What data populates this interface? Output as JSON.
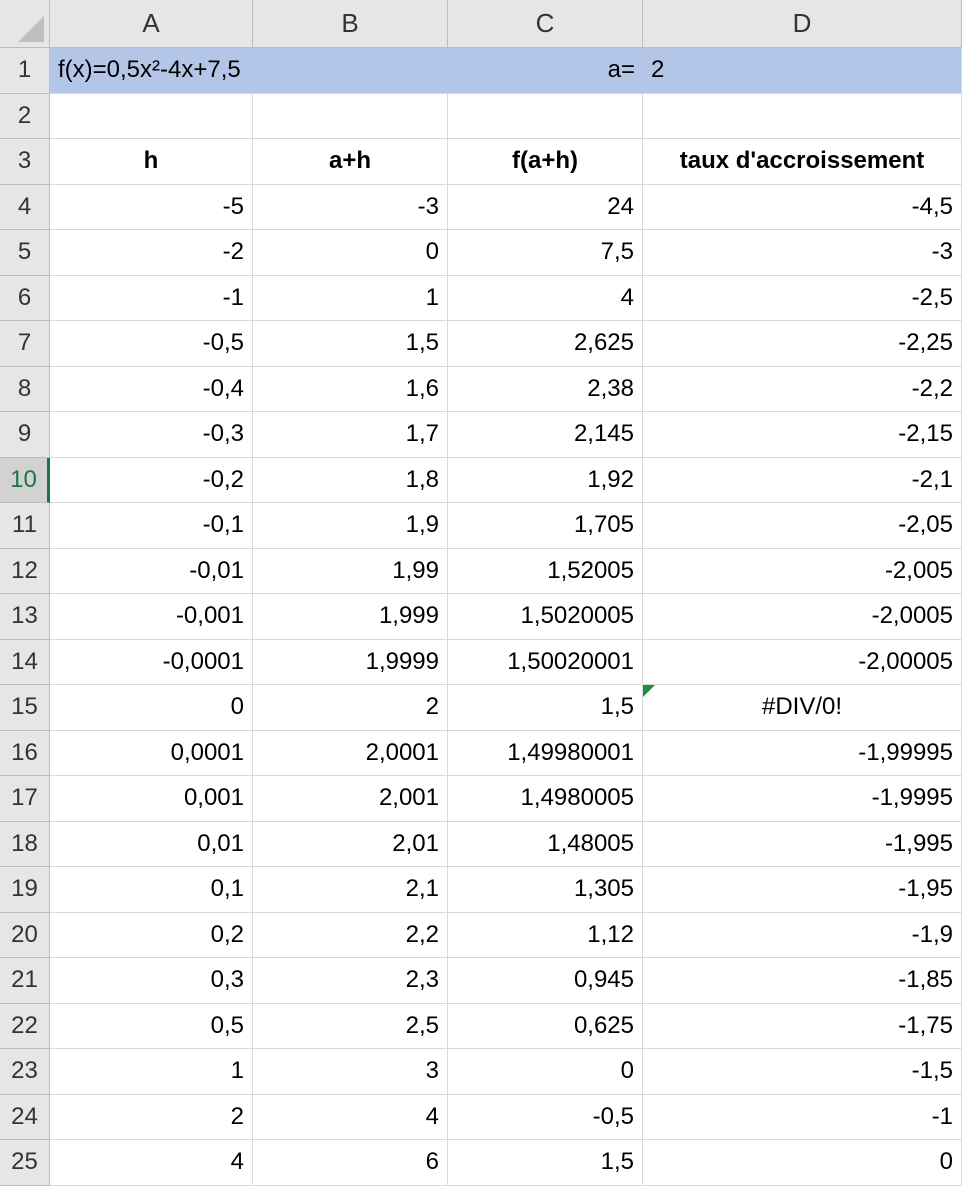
{
  "columns": [
    "A",
    "B",
    "C",
    "D"
  ],
  "row_numbers": [
    "1",
    "2",
    "3",
    "4",
    "5",
    "6",
    "7",
    "8",
    "9",
    "10",
    "11",
    "12",
    "13",
    "14",
    "15",
    "16",
    "17",
    "18",
    "19",
    "20",
    "21",
    "22",
    "23",
    "24",
    "25"
  ],
  "active_row": "10",
  "row1": {
    "formula": "f(x)=0,5x²-4x+7,5",
    "a_label": "a=",
    "a_value": "2"
  },
  "headers": {
    "h": "h",
    "ah": "a+h",
    "fah": "f(a+h)",
    "taux": "taux d'accroissement"
  },
  "rows": [
    {
      "h": "-5",
      "ah": "-3",
      "fah": "24",
      "taux": "-4,5"
    },
    {
      "h": "-2",
      "ah": "0",
      "fah": "7,5",
      "taux": "-3"
    },
    {
      "h": "-1",
      "ah": "1",
      "fah": "4",
      "taux": "-2,5"
    },
    {
      "h": "-0,5",
      "ah": "1,5",
      "fah": "2,625",
      "taux": "-2,25"
    },
    {
      "h": "-0,4",
      "ah": "1,6",
      "fah": "2,38",
      "taux": "-2,2"
    },
    {
      "h": "-0,3",
      "ah": "1,7",
      "fah": "2,145",
      "taux": "-2,15"
    },
    {
      "h": "-0,2",
      "ah": "1,8",
      "fah": "1,92",
      "taux": "-2,1"
    },
    {
      "h": "-0,1",
      "ah": "1,9",
      "fah": "1,705",
      "taux": "-2,05"
    },
    {
      "h": "-0,01",
      "ah": "1,99",
      "fah": "1,52005",
      "taux": "-2,005"
    },
    {
      "h": "-0,001",
      "ah": "1,999",
      "fah": "1,5020005",
      "taux": "-2,0005"
    },
    {
      "h": "-0,0001",
      "ah": "1,9999",
      "fah": "1,50020001",
      "taux": "-2,00005"
    },
    {
      "h": "0",
      "ah": "2",
      "fah": "1,5",
      "taux": "#DIV/0!",
      "error": true
    },
    {
      "h": "0,0001",
      "ah": "2,0001",
      "fah": "1,49980001",
      "taux": "-1,99995"
    },
    {
      "h": "0,001",
      "ah": "2,001",
      "fah": "1,4980005",
      "taux": "-1,9995"
    },
    {
      "h": "0,01",
      "ah": "2,01",
      "fah": "1,48005",
      "taux": "-1,995"
    },
    {
      "h": "0,1",
      "ah": "2,1",
      "fah": "1,305",
      "taux": "-1,95"
    },
    {
      "h": "0,2",
      "ah": "2,2",
      "fah": "1,12",
      "taux": "-1,9"
    },
    {
      "h": "0,3",
      "ah": "2,3",
      "fah": "0,945",
      "taux": "-1,85"
    },
    {
      "h": "0,5",
      "ah": "2,5",
      "fah": "0,625",
      "taux": "-1,75"
    },
    {
      "h": "1",
      "ah": "3",
      "fah": "0",
      "taux": "-1,5"
    },
    {
      "h": "2",
      "ah": "4",
      "fah": "-0,5",
      "taux": "-1"
    },
    {
      "h": "4",
      "ah": "6",
      "fah": "1,5",
      "taux": "0"
    }
  ],
  "colors": {
    "row1_fill": "#b4c6e7",
    "header_bg": "#e6e6e6",
    "accent": "#217346",
    "error_flag": "#1e8f3a"
  }
}
